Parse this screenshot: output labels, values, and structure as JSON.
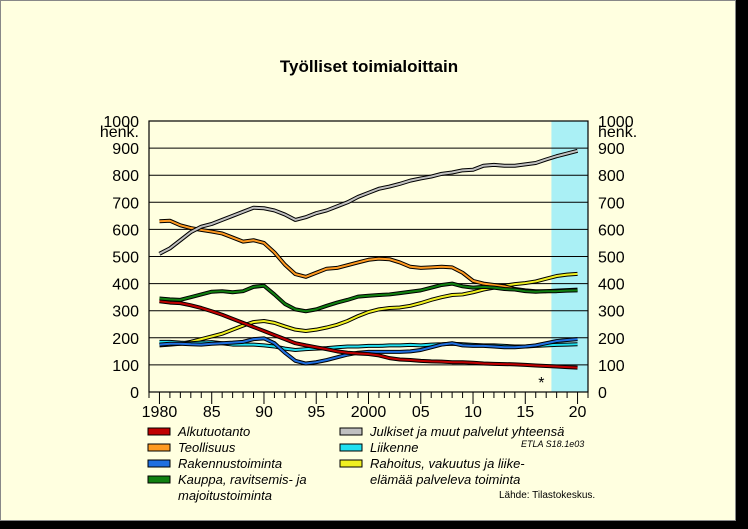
{
  "chart_data": {
    "type": "line",
    "title": "Työlliset toimialoittain",
    "unit_label": "henk.",
    "ylim": [
      0,
      1000
    ],
    "y_ticks": [
      "0",
      "100",
      "200",
      "300",
      "400",
      "500",
      "600",
      "700",
      "800",
      "900",
      "1000"
    ],
    "x_range": [
      1979,
      2021
    ],
    "x_ticks": [
      {
        "year": 1980,
        "label": "1980"
      },
      {
        "year": 1985,
        "label": "85"
      },
      {
        "year": 1990,
        "label": "90"
      },
      {
        "year": 1995,
        "label": "95"
      },
      {
        "year": 2000,
        "label": "2000"
      },
      {
        "year": 2005,
        "label": "05"
      },
      {
        "year": 2010,
        "label": "10"
      },
      {
        "year": 2015,
        "label": "15"
      },
      {
        "year": 2020,
        "label": "20"
      }
    ],
    "forecast_start": 2017.5,
    "forecast_marker": "*",
    "forecast_color": "#aaf0f5",
    "grid": true,
    "x": [
      1980,
      1981,
      1982,
      1983,
      1984,
      1985,
      1986,
      1987,
      1988,
      1989,
      1990,
      1991,
      1992,
      1993,
      1994,
      1995,
      1996,
      1997,
      1998,
      1999,
      2000,
      2001,
      2002,
      2003,
      2004,
      2005,
      2006,
      2007,
      2008,
      2009,
      2010,
      2011,
      2012,
      2013,
      2014,
      2015,
      2016,
      2017,
      2018,
      2019,
      2020
    ],
    "series": [
      {
        "name": "Alkutuotanto",
        "color": "#c00000",
        "values": [
          335,
          330,
          328,
          320,
          310,
          298,
          285,
          270,
          255,
          240,
          225,
          210,
          195,
          180,
          172,
          165,
          158,
          150,
          145,
          142,
          140,
          135,
          125,
          120,
          118,
          115,
          113,
          112,
          110,
          110,
          108,
          105,
          104,
          103,
          102,
          100,
          98,
          96,
          94,
          92,
          90
        ]
      },
      {
        "name": "Teollisuus",
        "color": "#ff9a20",
        "values": [
          630,
          632,
          615,
          605,
          598,
          592,
          585,
          570,
          555,
          560,
          550,
          515,
          470,
          435,
          425,
          440,
          455,
          458,
          468,
          478,
          488,
          492,
          490,
          478,
          462,
          458,
          460,
          462,
          460,
          440,
          410,
          400,
          395,
          390,
          380,
          375,
          372,
          372,
          374,
          376,
          378
        ]
      },
      {
        "name": "Rakennustoiminta",
        "color": "#2070e0",
        "values": [
          175,
          178,
          178,
          176,
          175,
          178,
          180,
          182,
          185,
          195,
          198,
          180,
          145,
          115,
          105,
          110,
          118,
          128,
          138,
          145,
          148,
          148,
          148,
          148,
          150,
          155,
          165,
          175,
          180,
          172,
          170,
          170,
          168,
          165,
          165,
          168,
          172,
          180,
          188,
          192,
          195
        ]
      },
      {
        "name": "Kauppa, ravitsemis- ja majoitustoiminta",
        "color": "#108010",
        "values": [
          345,
          342,
          340,
          350,
          360,
          370,
          372,
          368,
          372,
          388,
          392,
          360,
          325,
          305,
          298,
          305,
          318,
          330,
          340,
          352,
          355,
          358,
          360,
          365,
          370,
          375,
          385,
          395,
          400,
          390,
          385,
          388,
          385,
          380,
          378,
          372,
          370,
          372,
          372,
          374,
          375
        ]
      },
      {
        "name": "Julkiset ja muut palvelut yhteensä",
        "color": "#c0c0c0",
        "values": [
          510,
          530,
          560,
          590,
          610,
          620,
          635,
          650,
          665,
          680,
          678,
          670,
          655,
          635,
          645,
          660,
          670,
          685,
          700,
          720,
          735,
          750,
          758,
          768,
          780,
          788,
          795,
          805,
          810,
          818,
          820,
          835,
          838,
          835,
          835,
          840,
          845,
          858,
          870,
          880,
          890
        ]
      },
      {
        "name": "Liikenne",
        "color": "#20e0f0",
        "values": [
          185,
          185,
          182,
          180,
          182,
          184,
          180,
          175,
          175,
          175,
          172,
          168,
          160,
          155,
          158,
          160,
          162,
          165,
          168,
          168,
          170,
          170,
          172,
          172,
          174,
          172,
          175,
          176,
          178,
          176,
          174,
          172,
          172,
          170,
          168,
          168,
          170,
          172,
          174,
          175,
          176
        ]
      },
      {
        "name": "Rahoitus, vakuutus ja liike-elämää palveleva toiminta",
        "color": "#f0f020",
        "values": [
          172,
          175,
          178,
          185,
          195,
          205,
          215,
          230,
          245,
          258,
          262,
          255,
          242,
          230,
          225,
          230,
          238,
          248,
          262,
          280,
          295,
          305,
          310,
          312,
          318,
          328,
          340,
          350,
          358,
          360,
          368,
          378,
          385,
          392,
          398,
          402,
          408,
          418,
          428,
          433,
          436
        ]
      }
    ],
    "legend": [
      {
        "name": "Alkutuotanto",
        "color": "#c00000"
      },
      {
        "name": "Teollisuus",
        "color": "#ff9a20"
      },
      {
        "name": "Rakennustoiminta",
        "color": "#2070e0"
      },
      {
        "name": "Kauppa, ravitsemis- ja",
        "name2": "majoitustoiminta",
        "color": "#108010"
      },
      {
        "name": "Julkiset ja muut palvelut yhteensä",
        "color": "#c0c0c0"
      },
      {
        "name": "Liikenne",
        "color": "#20e0f0"
      },
      {
        "name": "Rahoitus, vakuutus ja liike-",
        "name2": "elämää palveleva toiminta",
        "color": "#f0f020"
      }
    ],
    "code_label": "ETLA S18.1e03",
    "source": "Lähde:   Tilastokeskus."
  }
}
